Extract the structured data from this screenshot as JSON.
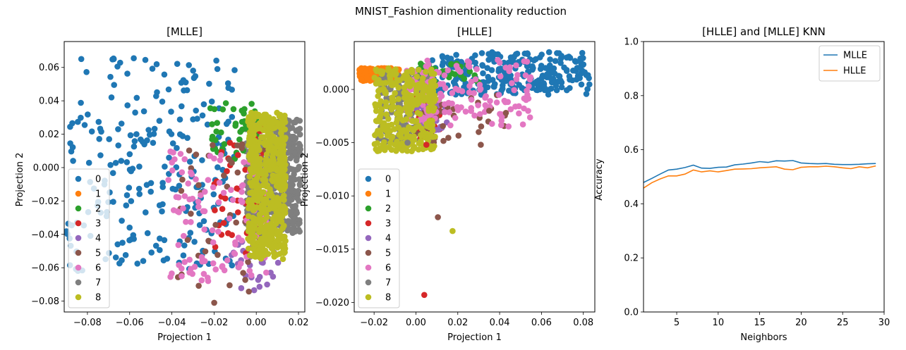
{
  "figure": {
    "suptitle": "MNIST_Fashion dimentionality reduction"
  },
  "colors": {
    "classes": [
      "#1f77b4",
      "#ff7f0e",
      "#2ca02c",
      "#d62728",
      "#9467bd",
      "#8c564b",
      "#e377c2",
      "#7f7f7f",
      "#bcbd22"
    ],
    "mlle_line": "#1f77b4",
    "hlle_line": "#ff7f0e"
  },
  "chart_data": [
    {
      "type": "scatter",
      "title": "[MLLE]",
      "xlabel": "Projection 1",
      "ylabel": "Projection 2",
      "xlim": [
        -0.091,
        0.023
      ],
      "ylim": [
        -0.0865,
        0.0755
      ],
      "xticks": [
        -0.08,
        -0.06,
        -0.04,
        -0.02,
        0.0,
        0.02
      ],
      "xtick_labels": [
        "−0.08",
        "−0.06",
        "−0.04",
        "−0.02",
        "0.00",
        "0.02"
      ],
      "yticks": [
        -0.08,
        -0.06,
        -0.04,
        -0.02,
        0.0,
        0.02,
        0.04,
        0.06
      ],
      "ytick_labels": [
        "−0.08",
        "−0.06",
        "−0.04",
        "−0.02",
        "0.000",
        "0.02",
        "0.04",
        "0.06"
      ],
      "legend": {
        "position": "lower-left",
        "entries": [
          "0",
          "1",
          "2",
          "3",
          "4",
          "5",
          "6",
          "7",
          "8"
        ]
      },
      "grid": false,
      "clusters": [
        {
          "label": "0",
          "x": [
            -0.09,
            -0.01
          ],
          "y": [
            -0.062,
            0.066
          ],
          "n": 240,
          "seed": 11
        },
        {
          "label": "7",
          "x": [
            -0.005,
            0.021
          ],
          "y": [
            -0.04,
            0.03
          ],
          "n": 450,
          "seed": 12
        },
        {
          "label": "2",
          "x": [
            -0.022,
            0.0
          ],
          "y": [
            0.005,
            0.04
          ],
          "n": 45,
          "seed": 13
        },
        {
          "label": "4",
          "x": [
            -0.012,
            0.012
          ],
          "y": [
            -0.074,
            -0.03
          ],
          "n": 35,
          "seed": 14
        },
        {
          "label": "3",
          "x": [
            -0.02,
            0.005
          ],
          "y": [
            -0.052,
            0.026
          ],
          "n": 45,
          "seed": 15
        },
        {
          "label": "5",
          "x": [
            -0.038,
            0.006
          ],
          "y": [
            -0.082,
            0.016
          ],
          "n": 45,
          "seed": 16
        },
        {
          "label": "6",
          "x": [
            -0.042,
            0.005
          ],
          "y": [
            -0.068,
            0.01
          ],
          "n": 110,
          "seed": 17
        },
        {
          "label": "8",
          "x": [
            -0.004,
            0.014
          ],
          "y": [
            -0.055,
            0.033
          ],
          "n": 480,
          "seed": 18
        }
      ]
    },
    {
      "type": "scatter",
      "title": "[HLLE]",
      "xlabel": "Projection 1",
      "ylabel": "Projection 2",
      "xlim": [
        -0.0295,
        0.0855
      ],
      "ylim": [
        -0.0209,
        0.0045
      ],
      "xticks": [
        -0.02,
        0.0,
        0.02,
        0.04,
        0.06,
        0.08
      ],
      "xtick_labels": [
        "−0.02",
        "0.00",
        "0.02",
        "0.04",
        "0.06",
        "0.08"
      ],
      "yticks": [
        -0.02,
        -0.015,
        -0.01,
        -0.005,
        0.0
      ],
      "ytick_labels": [
        "−0.020",
        "−0.015",
        "−0.010",
        "−0.005",
        "0.000"
      ],
      "legend": {
        "position": "lower-left",
        "entries": [
          "0",
          "1",
          "2",
          "3",
          "4",
          "5",
          "6",
          "7",
          "8"
        ]
      },
      "grid": false,
      "clusters": [
        {
          "label": "0",
          "x": [
            0.005,
            0.083
          ],
          "y": [
            -0.0005,
            0.0035
          ],
          "n": 280,
          "seed": 21
        },
        {
          "label": "1",
          "x": [
            -0.027,
            -0.008
          ],
          "y": [
            0.0008,
            0.002
          ],
          "n": 200,
          "seed": 22
        },
        {
          "label": "2",
          "x": [
            0.0,
            0.03
          ],
          "y": [
            0.0005,
            0.0025
          ],
          "n": 40,
          "seed": 23
        },
        {
          "label": "7",
          "x": [
            -0.018,
            0.008
          ],
          "y": [
            -0.0052,
            0.0015
          ],
          "n": 160,
          "seed": 24
        },
        {
          "label": "3",
          "x": [
            0.0,
            0.012
          ],
          "y": [
            -0.0052,
            -0.0005
          ],
          "n": 35,
          "seed": 25
        },
        {
          "label": "4",
          "x": [
            0.0,
            0.015
          ],
          "y": [
            -0.004,
            -0.0005
          ],
          "n": 30,
          "seed": 26
        },
        {
          "label": "5",
          "x": [
            -0.002,
            0.043
          ],
          "y": [
            -0.0052,
            -0.0005
          ],
          "n": 35,
          "seed": 27
        },
        {
          "label": "6",
          "x": [
            -0.005,
            0.055
          ],
          "y": [
            -0.0035,
            0.0028
          ],
          "n": 140,
          "seed": 28
        },
        {
          "label": "8",
          "x": [
            -0.02,
            0.01
          ],
          "y": [
            -0.0058,
            0.002
          ],
          "n": 300,
          "seed": 29
        }
      ],
      "outliers": [
        {
          "label": "5",
          "x": 0.0105,
          "y": -0.012
        },
        {
          "label": "8",
          "x": 0.0175,
          "y": -0.0133
        },
        {
          "label": "3",
          "x": 0.004,
          "y": -0.0193
        },
        {
          "label": "8",
          "x": -0.002,
          "y": -0.0058
        },
        {
          "label": "3",
          "x": 0.005,
          "y": -0.0052
        },
        {
          "label": "7",
          "x": -0.004,
          "y": -0.005
        },
        {
          "label": "5",
          "x": 0.043,
          "y": -0.0022
        },
        {
          "label": "5",
          "x": 0.035,
          "y": -0.002
        },
        {
          "label": "5",
          "x": 0.03,
          "y": -0.004
        },
        {
          "label": "5",
          "x": 0.031,
          "y": -0.0052
        }
      ]
    },
    {
      "type": "line",
      "title": "[HLLE] and [MLLE] KNN",
      "xlabel": "Neighbors",
      "ylabel": "Accuracy",
      "xlim": [
        1,
        30
      ],
      "ylim": [
        0.0,
        1.0
      ],
      "xticks": [
        5,
        10,
        15,
        20,
        25,
        30
      ],
      "xtick_labels": [
        "5",
        "10",
        "15",
        "20",
        "25",
        "30"
      ],
      "yticks": [
        0.0,
        0.2,
        0.4,
        0.6,
        0.8,
        1.0
      ],
      "ytick_labels": [
        "0.0",
        "0.2",
        "0.4",
        "0.6",
        "0.8",
        "1.0"
      ],
      "legend": {
        "position": "top-right"
      },
      "grid": false,
      "x": [
        1,
        2,
        3,
        4,
        5,
        6,
        7,
        8,
        9,
        10,
        11,
        12,
        13,
        14,
        15,
        16,
        17,
        18,
        19,
        20,
        21,
        22,
        23,
        24,
        25,
        26,
        27,
        28,
        29
      ],
      "series": [
        {
          "name": "MLLE",
          "values": [
            0.479,
            0.494,
            0.51,
            0.525,
            0.528,
            0.534,
            0.543,
            0.532,
            0.531,
            0.535,
            0.536,
            0.544,
            0.547,
            0.551,
            0.556,
            0.553,
            0.559,
            0.558,
            0.56,
            0.551,
            0.549,
            0.548,
            0.549,
            0.546,
            0.545,
            0.545,
            0.546,
            0.548,
            0.549
          ]
        },
        {
          "name": "HLLE",
          "values": [
            0.458,
            0.478,
            0.492,
            0.503,
            0.503,
            0.51,
            0.525,
            0.518,
            0.522,
            0.518,
            0.523,
            0.528,
            0.529,
            0.53,
            0.533,
            0.535,
            0.537,
            0.528,
            0.526,
            0.535,
            0.537,
            0.537,
            0.539,
            0.537,
            0.533,
            0.53,
            0.537,
            0.533,
            0.54
          ]
        }
      ]
    }
  ]
}
